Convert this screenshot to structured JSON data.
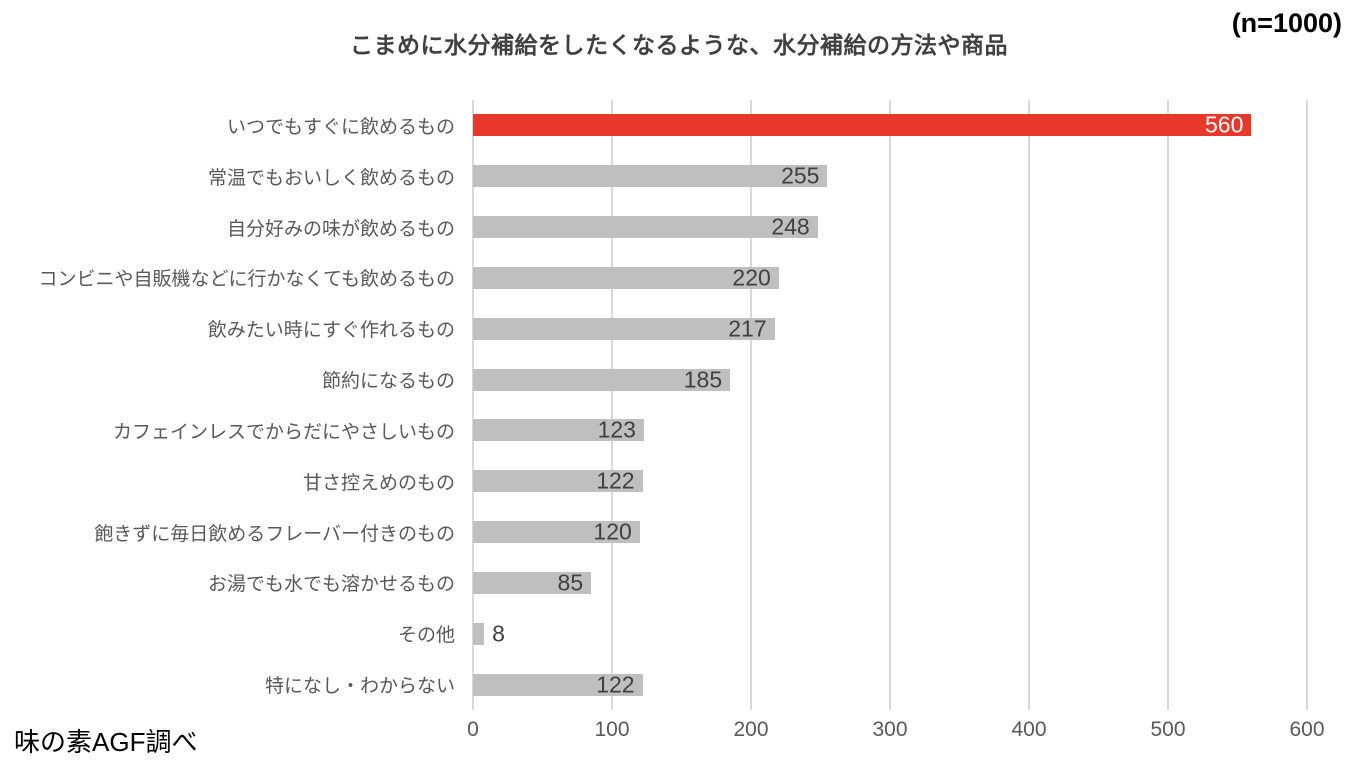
{
  "header": {
    "sample_size_label": "(n=1000)"
  },
  "footer": {
    "source_label": "味の素AGF調べ"
  },
  "colors": {
    "highlight_bar": "#E8382B",
    "default_bar": "#BFBFBF",
    "gridline": "#D9D9D9",
    "axis_text": "#595959",
    "data_label": "#404040",
    "highlight_data_label": "#FFFFFF",
    "title_text": "#404040"
  },
  "chart_data": {
    "type": "bar",
    "orientation": "horizontal",
    "title": "こまめに水分補給をしたくなるような、水分補給の方法や商品",
    "categories": [
      "いつでもすぐに飲めるもの",
      "常温でもおいしく飲めるもの",
      "自分好みの味が飲めるもの",
      "コンビニや自販機などに行かなくても飲めるもの",
      "飲みたい時にすぐ作れるもの",
      "節約になるもの",
      "カフェインレスでからだにやさしいもの",
      "甘さ控えめのもの",
      "飽きずに毎日飲めるフレーバー付きのもの",
      "お湯でも水でも溶かせるもの",
      "その他",
      "特になし・わからない"
    ],
    "values": [
      560,
      255,
      248,
      220,
      217,
      185,
      123,
      122,
      120,
      85,
      8,
      122
    ],
    "highlight_index": 0,
    "xlabel": "",
    "ylabel": "",
    "xlim": [
      0,
      600
    ],
    "xticks": [
      0,
      100,
      200,
      300,
      400,
      500,
      600
    ],
    "grid": true,
    "legend": false,
    "data_labels": true
  }
}
